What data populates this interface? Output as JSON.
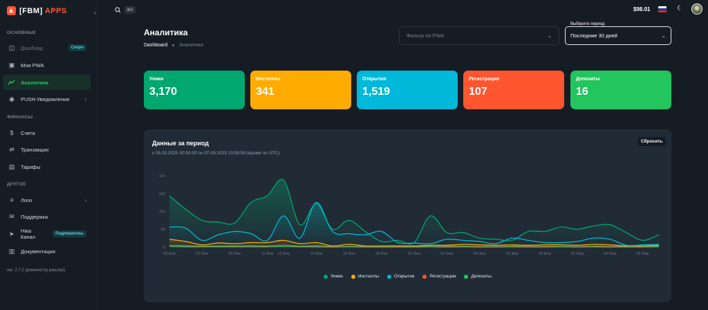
{
  "brand": {
    "name_prefix": "[FBM]",
    "name_suffix": "APPS",
    "collapse_icon": "chevron-left-icon"
  },
  "sidebar": {
    "sections": [
      {
        "label": "ОСНОВНЫЕ"
      },
      {
        "label": "ФИНАНСЫ"
      },
      {
        "label": "ДРУГОЕ"
      }
    ],
    "items": [
      {
        "label": "Дашборд",
        "icon": "dashboard-icon",
        "badge": "Скоро"
      },
      {
        "label": "Мои PWA",
        "icon": "apps-icon"
      },
      {
        "label": "Аналитика",
        "icon": "analytics-icon"
      },
      {
        "label": "PUSH-Уведомления",
        "icon": "bell-icon"
      },
      {
        "label": "Счета",
        "icon": "invoice-icon"
      },
      {
        "label": "Транзакции",
        "icon": "transactions-icon"
      },
      {
        "label": "Тарифы",
        "icon": "tariffs-icon"
      },
      {
        "label": "Логи",
        "icon": "logs-icon"
      },
      {
        "label": "Поддержка",
        "icon": "support-icon"
      },
      {
        "label": "Наш Канал",
        "icon": "channel-icon",
        "badge": "Подпишитесь"
      },
      {
        "label": "Документация",
        "icon": "docs-icon"
      }
    ],
    "version": "ver. 2.7.2 (powered by pwa.bot)"
  },
  "topbar": {
    "search_shortcut": "⌘K",
    "balance": "$98.01",
    "flag_colors": [
      "#ffffff",
      "#0039a6",
      "#d52b1e"
    ]
  },
  "page": {
    "title": "Аналитика",
    "breadcrumb": {
      "home": "Dashboard",
      "current": "Аналитика"
    },
    "filter_placeholder": "Фильтр по PWA",
    "period_label": "Выберите период",
    "period_value": "Последние 30 дней"
  },
  "stats": [
    {
      "label": "Уники",
      "value": "3,170",
      "color": "#00a76f"
    },
    {
      "label": "Инсталлы",
      "value": "341",
      "color": "#ffab00"
    },
    {
      "label": "Открытия",
      "value": "1,519",
      "color": "#00b8d9"
    },
    {
      "label": "Регистрации",
      "value": "107",
      "color": "#ff5630"
    },
    {
      "label": "Депозиты",
      "value": "16",
      "color": "#22c55e"
    }
  ],
  "panel": {
    "title": "Данные за период",
    "subtitle": "с 05.02.2025 00:00:00 по 07.03.2025 23:59:59 (время по UTC)",
    "reset_label": "Сбросить"
  },
  "chart_data": {
    "type": "area",
    "ylim": [
      0,
      320
    ],
    "yticks": [
      "320",
      "240",
      "160",
      "80",
      "0"
    ],
    "x_tick_labels": [
      "05 Фев",
      "07 Фев",
      "09 Фев",
      "11 Фев",
      "12 Фев",
      "14 Фев",
      "16 Фев",
      "18 Фев",
      "20 Фев",
      "22 Фев",
      "24 Фев",
      "26 Фев",
      "28 Фев",
      "02 Мар",
      "04 Мар",
      "06 Мар"
    ],
    "x_tick_index": [
      0,
      2,
      4,
      6,
      7,
      9,
      11,
      13,
      15,
      17,
      19,
      21,
      23,
      25,
      27,
      29
    ],
    "x": [
      "05.02",
      "06.02",
      "07.02",
      "08.02",
      "09.02",
      "10.02",
      "11.02",
      "12.02",
      "13.02",
      "14.02",
      "15.02",
      "16.02",
      "17.02",
      "18.02",
      "19.02",
      "20.02",
      "21.02",
      "22.02",
      "23.02",
      "24.02",
      "25.02",
      "26.02",
      "27.02",
      "28.02",
      "01.03",
      "02.03",
      "03.03",
      "04.03",
      "05.03",
      "06.03",
      "07.03"
    ],
    "series": [
      {
        "name": "Уники",
        "color": "#00a76f",
        "values": [
          230,
          170,
          120,
          112,
          108,
          200,
          230,
          300,
          100,
          195,
          80,
          120,
          70,
          25,
          30,
          20,
          140,
          65,
          65,
          40,
          35,
          30,
          70,
          70,
          90,
          80,
          95,
          100,
          65,
          30,
          55
        ]
      },
      {
        "name": "Инсталлы",
        "color": "#ffab00",
        "values": [
          35,
          25,
          10,
          18,
          15,
          20,
          20,
          30,
          15,
          20,
          5,
          12,
          5,
          5,
          5,
          5,
          8,
          8,
          12,
          10,
          8,
          10,
          8,
          10,
          10,
          8,
          12,
          10,
          5,
          5,
          8
        ]
      },
      {
        "name": "Открытия",
        "color": "#00b8d9",
        "values": [
          90,
          85,
          30,
          55,
          70,
          60,
          30,
          140,
          40,
          200,
          70,
          60,
          55,
          70,
          20,
          18,
          15,
          35,
          30,
          25,
          15,
          40,
          30,
          20,
          20,
          25,
          40,
          35,
          8,
          10,
          12
        ]
      },
      {
        "name": "Регистрации",
        "color": "#ff5630",
        "values": [
          8,
          6,
          4,
          5,
          5,
          6,
          5,
          8,
          4,
          6,
          2,
          3,
          2,
          2,
          2,
          2,
          3,
          3,
          4,
          3,
          2,
          4,
          3,
          3,
          3,
          2,
          4,
          3,
          2,
          2,
          3
        ]
      },
      {
        "name": "Депозиты",
        "color": "#22c55e",
        "values": [
          2,
          1,
          1,
          1,
          1,
          1,
          1,
          2,
          1,
          1,
          0,
          1,
          0,
          0,
          0,
          0,
          1,
          0,
          1,
          0,
          0,
          1,
          0,
          0,
          1,
          0,
          1,
          0,
          0,
          0,
          1
        ]
      }
    ],
    "legend_position": "bottom"
  }
}
